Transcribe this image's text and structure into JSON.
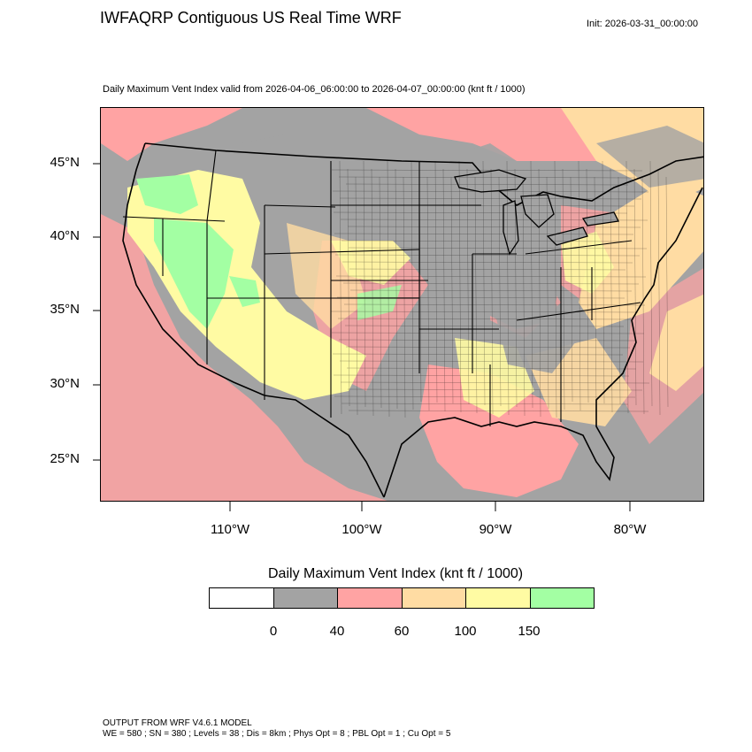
{
  "header": {
    "title": "IWFAQRP Contiguous US Real Time WRF",
    "init": "Init: 2026-03-31_00:00:00",
    "subtitle": "Daily Maximum Vent Index valid from 2026-04-06_06:00:00 to 2026-04-07_00:00:00   (knt ft / 1000)"
  },
  "map": {
    "lat_labels": [
      "45°N",
      "40°N",
      "35°N",
      "30°N",
      "25°N"
    ],
    "lon_labels": [
      "110°W",
      "100°W",
      "90°W",
      "80°W"
    ]
  },
  "legend": {
    "title": "Daily Maximum Vent Index  (knt ft / 1000)",
    "colors": [
      "#ffffff",
      "#a3a3a3",
      "#ffa3a3",
      "#ffdca3",
      "#fffba3",
      "#a3ffa3"
    ],
    "bin_labels": [
      "0",
      "40",
      "60",
      "100",
      "150"
    ]
  },
  "footer": {
    "line1": "OUTPUT FROM WRF V4.6.1 MODEL",
    "line2": "WE = 580 ; SN = 380 ; Levels = 38 ; Dis = 8km ; Phys Opt = 8 ; PBL Opt = 1 ; Cu Opt = 5"
  }
}
